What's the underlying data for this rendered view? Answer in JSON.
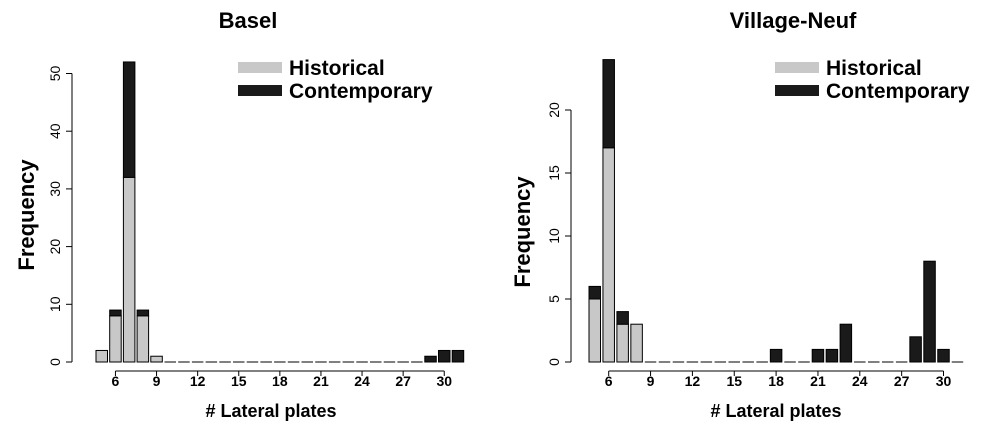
{
  "chart_data": [
    {
      "type": "bar",
      "stacked": true,
      "title": "Basel",
      "xlabel": "# Lateral plates",
      "ylabel": "Frequency",
      "x": [
        5,
        6,
        7,
        8,
        9,
        10,
        11,
        12,
        13,
        14,
        15,
        16,
        17,
        18,
        19,
        20,
        21,
        22,
        23,
        24,
        25,
        26,
        27,
        28,
        29,
        30,
        31
      ],
      "x_tick_labels": [
        "6",
        "9",
        "12",
        "15",
        "18",
        "21",
        "24",
        "27",
        "30"
      ],
      "y_ticks": [
        0,
        10,
        20,
        30,
        40,
        50
      ],
      "ylim": [
        0,
        52
      ],
      "series": [
        {
          "name": "Historical",
          "color": "#c8c8c8",
          "values": [
            2,
            8,
            32,
            8,
            1,
            0,
            0,
            0,
            0,
            0,
            0,
            0,
            0,
            0,
            0,
            0,
            0,
            0,
            0,
            0,
            0,
            0,
            0,
            0,
            0,
            0,
            0
          ]
        },
        {
          "name": "Contemporary",
          "color": "#1a1a1a",
          "values": [
            0,
            1,
            20,
            1,
            0,
            0,
            0,
            0,
            0,
            0,
            0,
            0,
            0,
            0,
            0,
            0,
            0,
            0,
            0,
            0,
            0,
            0,
            0,
            0,
            1,
            2,
            2
          ]
        }
      ],
      "legend_position": "top-right"
    },
    {
      "type": "bar",
      "stacked": true,
      "title": "Village-Neuf",
      "xlabel": "# Lateral plates",
      "ylabel": "Frequency",
      "x": [
        5,
        6,
        7,
        8,
        9,
        10,
        11,
        12,
        13,
        14,
        15,
        16,
        17,
        18,
        19,
        20,
        21,
        22,
        23,
        24,
        25,
        26,
        27,
        28,
        29,
        30,
        31
      ],
      "x_tick_labels": [
        "6",
        "9",
        "12",
        "15",
        "18",
        "21",
        "24",
        "27",
        "30"
      ],
      "y_ticks": [
        0,
        5,
        10,
        15,
        20
      ],
      "ylim": [
        0,
        24
      ],
      "series": [
        {
          "name": "Historical",
          "color": "#c8c8c8",
          "values": [
            5,
            17,
            3,
            3,
            0,
            0,
            0,
            0,
            0,
            0,
            0,
            0,
            0,
            0,
            0,
            0,
            0,
            0,
            0,
            0,
            0,
            0,
            0,
            0,
            0,
            0,
            0
          ]
        },
        {
          "name": "Contemporary",
          "color": "#1a1a1a",
          "values": [
            1,
            7,
            1,
            0,
            0,
            0,
            0,
            0,
            0,
            0,
            0,
            0,
            0,
            1,
            0,
            0,
            1,
            1,
            3,
            0,
            0,
            0,
            0,
            2,
            8,
            1,
            0
          ]
        }
      ],
      "legend_position": "top-right"
    }
  ]
}
